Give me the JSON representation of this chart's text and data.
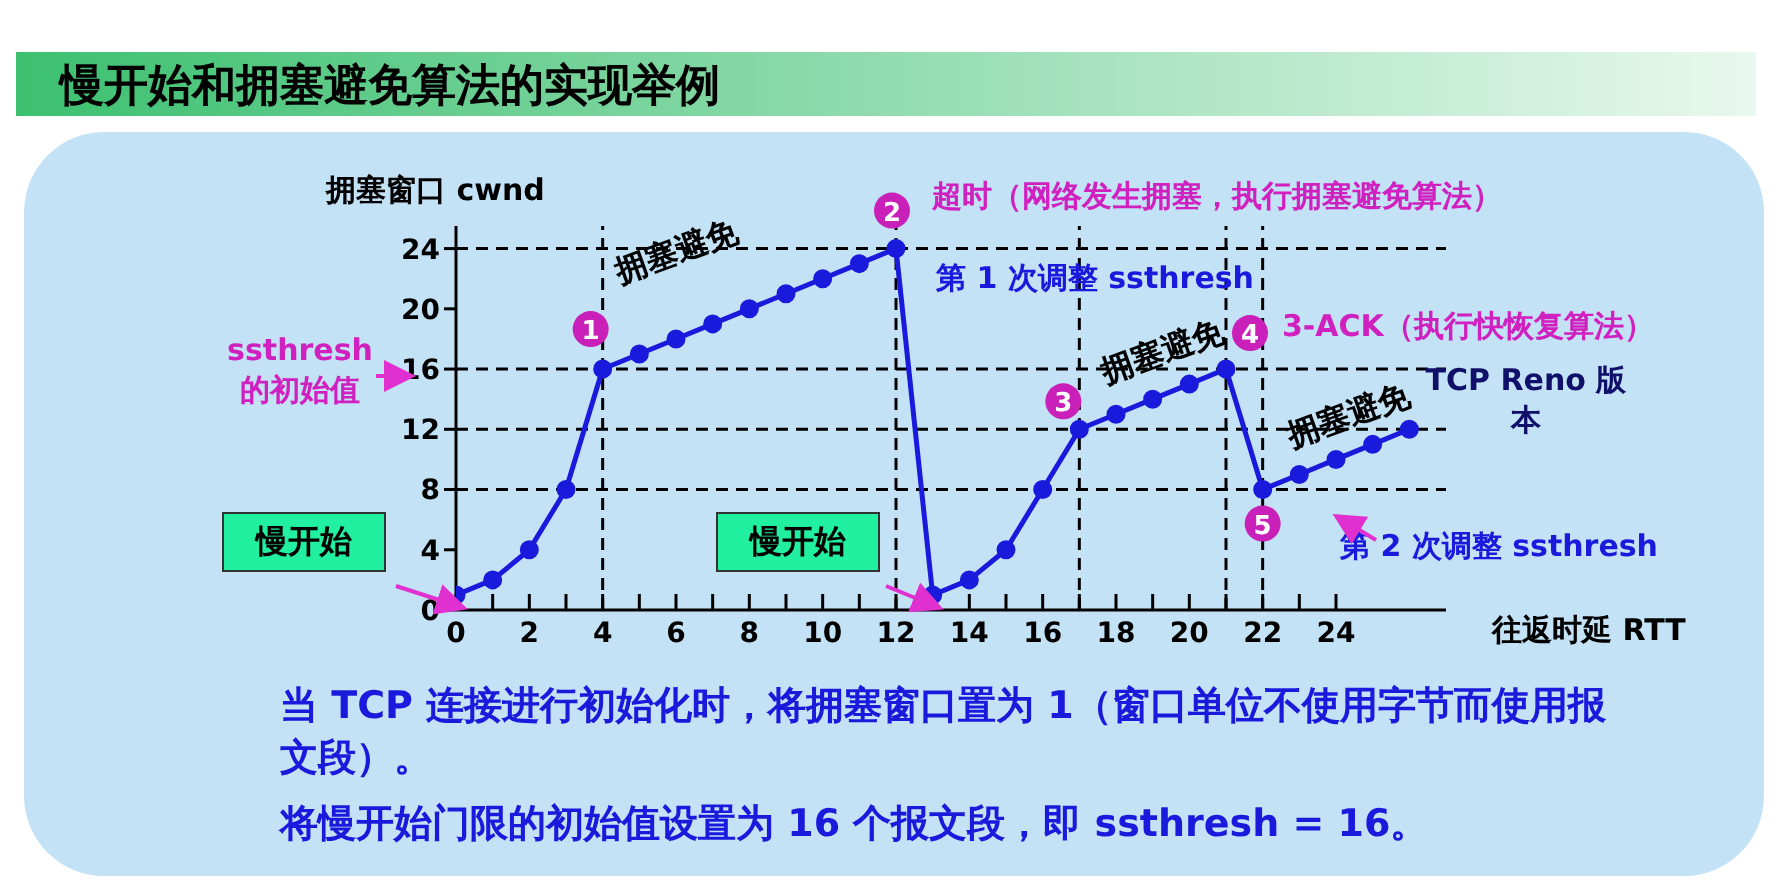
{
  "chart_data": {
    "type": "line",
    "title": "慢开始和拥塞避免算法的实现举例",
    "xlabel": "往返时延 RTT",
    "ylabel": "拥塞窗口 cwnd",
    "x": [
      0,
      1,
      2,
      3,
      4,
      5,
      6,
      7,
      8,
      9,
      10,
      11,
      12,
      13,
      14,
      15,
      16,
      17,
      18,
      19,
      20,
      21,
      22,
      23,
      24,
      25,
      26
    ],
    "series": [
      {
        "color": "#1a1adc",
        "values": [
          1,
          2,
          4,
          8,
          16,
          17,
          18,
          19,
          20,
          21,
          22,
          23,
          24,
          1,
          2,
          4,
          8,
          12,
          13,
          14,
          15,
          16,
          8,
          9,
          10,
          11,
          12
        ]
      }
    ],
    "xlim": [
      0,
      27
    ],
    "ylim": [
      0,
      25.5
    ],
    "xticks": [
      0,
      {
        "value": 1,
        "label": null
      },
      2,
      {
        "value": 3,
        "label": null
      },
      4,
      {
        "value": 5,
        "label": null
      },
      6,
      {
        "value": 7,
        "label": null
      },
      8,
      {
        "value": 9,
        "label": null
      },
      10,
      {
        "value": 11,
        "label": null
      },
      12,
      {
        "value": 13,
        "label": null
      },
      14,
      {
        "value": 15,
        "label": null
      },
      16,
      {
        "value": 17,
        "label": null
      },
      18,
      {
        "value": 19,
        "label": null
      },
      20,
      {
        "value": 21,
        "label": null
      },
      22,
      {
        "value": 23,
        "label": null
      },
      24
    ],
    "yticks": [
      0,
      4,
      8,
      12,
      16,
      20,
      24
    ],
    "marker": "circle",
    "line_style": "solid",
    "ref_lines": [
      {
        "axis": "y",
        "value": 24,
        "color": "#000000",
        "line_style": "dashed"
      },
      {
        "axis": "y",
        "value": 16,
        "color": "#000000",
        "line_style": "dashed"
      },
      {
        "axis": "y",
        "value": 12,
        "color": "#000000",
        "line_style": "dashed"
      },
      {
        "axis": "y",
        "value": 8,
        "color": "#000000",
        "line_style": "dashed"
      },
      {
        "axis": "x",
        "value": 4,
        "color": "#000000",
        "line_style": "dashed"
      },
      {
        "axis": "x",
        "value": 12,
        "color": "#000000",
        "line_style": "dashed"
      },
      {
        "axis": "x",
        "value": 17,
        "color": "#000000",
        "line_style": "dashed"
      },
      {
        "axis": "x",
        "value": 21,
        "color": "#000000",
        "line_style": "dashed"
      },
      {
        "axis": "x",
        "value": 22,
        "color": "#000000",
        "line_style": "dashed"
      }
    ],
    "annotations": [
      "拥塞避免",
      "超时（网络发生拥塞，执行拥塞避免算法）",
      "第 1 次调整 ssthresh",
      "拥塞避免",
      "3-ACK（执行快恢复算法）",
      "TCP Reno 版本",
      "拥塞避免",
      "第 2 次调整 ssthresh",
      "ssthresh 的初始值",
      "慢开始",
      "慢开始",
      "当 TCP 连接进行初始化时，将拥塞窗口置为 1（窗口单位不使用字节而使用报文段）。",
      "将慢开始门限的初始值设置为 16 个报文段，即 ssthresh = 16。",
      {
        "text": "1",
        "x": 4,
        "y": 16
      },
      {
        "text": "2",
        "x": 12,
        "y": 24
      },
      {
        "text": "3",
        "x": 17,
        "y": 12
      },
      {
        "text": "4",
        "x": 21,
        "y": 16
      },
      {
        "text": "5",
        "x": 22,
        "y": 8
      }
    ]
  }
}
